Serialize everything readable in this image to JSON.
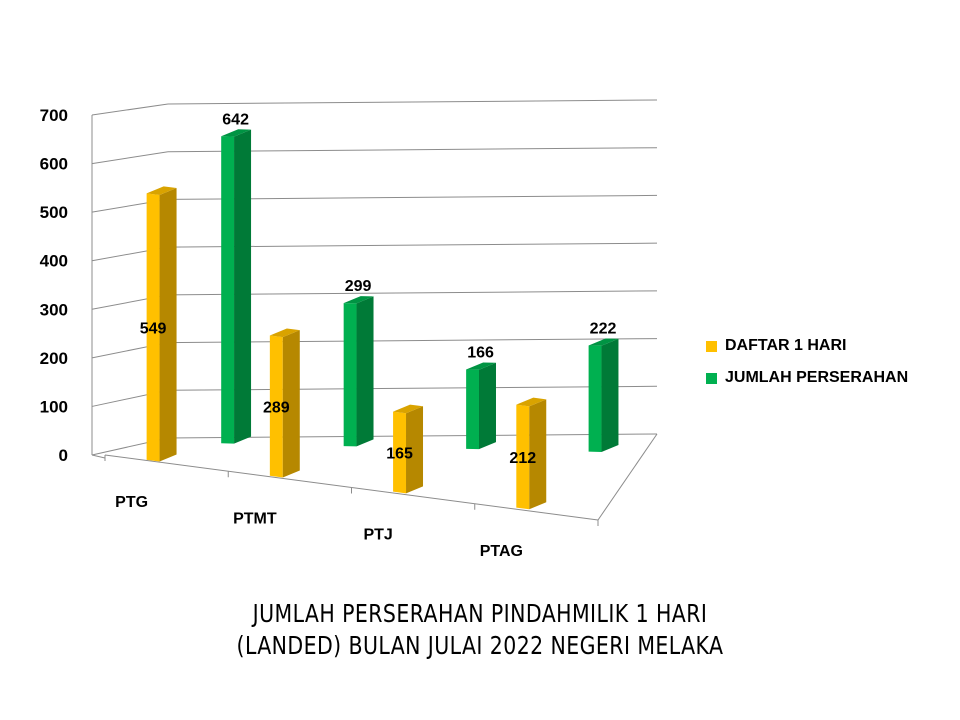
{
  "chart_data": {
    "type": "bar",
    "title_lines": [
      "JUMLAH PERSERAHAN PINDAHMILIK 1 HARI",
      "(LANDED) BULAN JULAI 2022 NEGERI MELAKA"
    ],
    "categories": [
      "PTG",
      "PTMT",
      "PTJ",
      "PTAG"
    ],
    "series": [
      {
        "name": "DAFTAR 1 HARI",
        "values": [
          549,
          289,
          165,
          212
        ],
        "color": "#FFC000",
        "side": "#B68800",
        "top": "#D9A300"
      },
      {
        "name": "JUMLAH PERSERAHAN",
        "values": [
          642,
          299,
          166,
          222
        ],
        "color": "#00B050",
        "side": "#007A37",
        "top": "#009443"
      }
    ],
    "ylim": [
      0,
      700
    ],
    "yticks": [
      "0",
      "100",
      "200",
      "300",
      "400",
      "500",
      "600",
      "700"
    ],
    "grid": true,
    "legend_position": "right"
  }
}
